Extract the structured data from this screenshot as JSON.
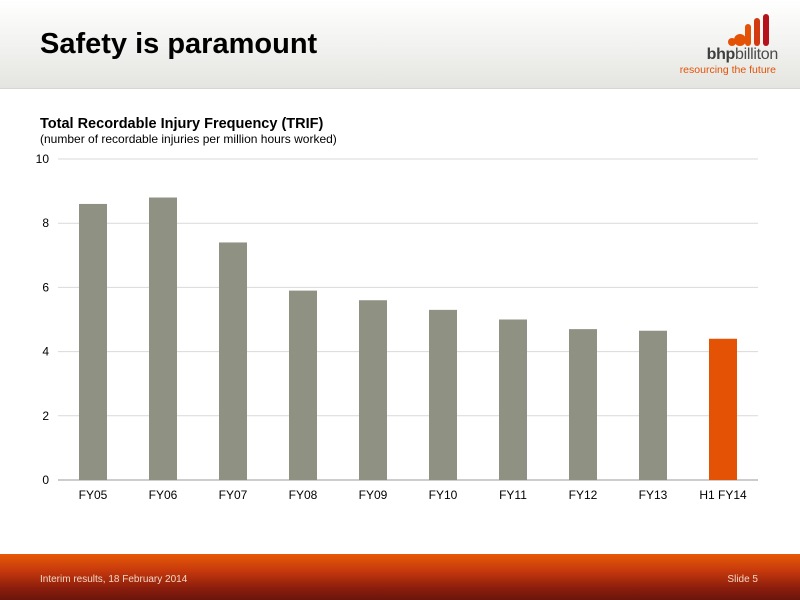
{
  "slide": {
    "title": "Safety is paramount",
    "footer_left": "Interim results, 18 February 2014",
    "footer_right": "Slide 5"
  },
  "logo": {
    "word_bold": "bhp",
    "word_rest": "billiton",
    "tagline": "resourcing the future",
    "color_orange": "#e35205",
    "color_red": "#b5121b"
  },
  "chart_data": {
    "type": "bar",
    "title": "Total Recordable Injury Frequency (TRIF)",
    "subtitle": "(number of recordable injuries per million hours worked)",
    "categories": [
      "FY05",
      "FY06",
      "FY07",
      "FY08",
      "FY09",
      "FY10",
      "FY11",
      "FY12",
      "FY13",
      "H1 FY14"
    ],
    "values": [
      8.6,
      8.8,
      7.4,
      5.9,
      5.6,
      5.3,
      5.0,
      4.7,
      4.65,
      4.4
    ],
    "ylim": [
      0,
      10
    ],
    "yticks": [
      0,
      2,
      4,
      6,
      8,
      10
    ],
    "grid": true,
    "xlabel": "",
    "ylabel": "",
    "bar_color": "#8f9183",
    "highlight_color": "#e35205",
    "highlight_index": 9
  }
}
